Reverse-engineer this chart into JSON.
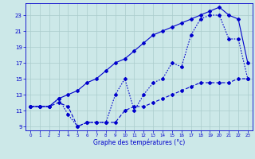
{
  "line1_x": [
    0,
    1,
    2,
    3,
    4,
    5,
    6,
    7,
    8,
    9,
    10,
    11,
    12,
    13,
    14,
    15,
    16,
    17,
    18,
    19,
    20,
    21,
    22,
    23
  ],
  "line1_y": [
    11.5,
    11.5,
    11.5,
    12.5,
    13.0,
    13.5,
    14.5,
    15.0,
    16.0,
    17.0,
    17.5,
    18.5,
    19.5,
    20.5,
    21.0,
    21.5,
    22.0,
    22.5,
    23.0,
    23.5,
    24.0,
    23.0,
    22.5,
    17.0
  ],
  "line2_x": [
    0,
    1,
    2,
    3,
    4,
    5,
    6,
    7,
    8,
    9,
    10,
    11,
    12,
    13,
    14,
    15,
    16,
    17,
    18,
    19,
    20,
    21,
    22,
    23
  ],
  "line2_y": [
    11.5,
    11.5,
    11.5,
    12.5,
    10.5,
    9.0,
    9.5,
    9.5,
    9.5,
    13.0,
    15.0,
    11.0,
    13.0,
    14.5,
    15.0,
    17.0,
    16.5,
    20.5,
    22.5,
    23.0,
    23.0,
    20.0,
    20.0,
    15.0
  ],
  "line3_x": [
    0,
    1,
    2,
    3,
    4,
    5,
    6,
    7,
    8,
    9,
    10,
    11,
    12,
    13,
    14,
    15,
    16,
    17,
    18,
    19,
    20,
    21,
    22,
    23
  ],
  "line3_y": [
    11.5,
    11.5,
    11.5,
    12.0,
    11.5,
    9.0,
    9.5,
    9.5,
    9.5,
    9.5,
    11.0,
    11.5,
    11.5,
    12.0,
    12.5,
    13.0,
    13.5,
    14.0,
    14.5,
    14.5,
    14.5,
    14.5,
    15.0,
    15.0
  ],
  "color": "#0000cc",
  "bg_color": "#cce8e8",
  "grid_color": "#aacccc",
  "xlabel": "Graphe des températures (°c)",
  "yticks": [
    9,
    11,
    13,
    15,
    17,
    19,
    21,
    23
  ],
  "xticks": [
    0,
    1,
    2,
    3,
    4,
    5,
    6,
    7,
    8,
    9,
    10,
    11,
    12,
    13,
    14,
    15,
    16,
    17,
    18,
    19,
    20,
    21,
    22,
    23
  ],
  "ylim": [
    8.5,
    24.5
  ],
  "xlim": [
    -0.5,
    23.5
  ],
  "line_width": 0.8,
  "marker_size": 2.0
}
